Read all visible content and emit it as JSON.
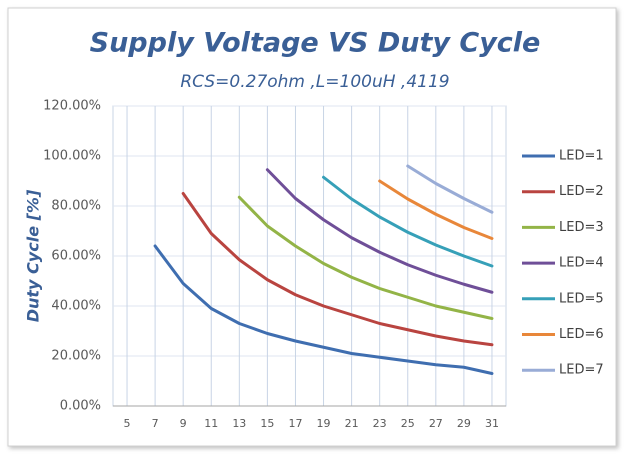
{
  "chart_data": {
    "type": "line",
    "title": "Supply Voltage VS Duty Cycle",
    "subtitle": "RCS=0.27ohm ,L=100uH ,4119",
    "y_label": "Duty Cycle [%]",
    "xlim": [
      4,
      32
    ],
    "xticks": [
      5,
      7,
      9,
      11,
      13,
      15,
      17,
      19,
      21,
      23,
      25,
      27,
      29,
      31
    ],
    "ylim": [
      0,
      120
    ],
    "yticks": [
      {
        "value": 0,
        "label": "0.00%"
      },
      {
        "value": 20,
        "label": "20.00%"
      },
      {
        "value": 40,
        "label": "40.00%"
      },
      {
        "value": 60,
        "label": "60.00%"
      },
      {
        "value": 80,
        "label": "80.00%"
      },
      {
        "value": 100,
        "label": "100.00%"
      },
      {
        "value": 120,
        "label": "120.00%"
      }
    ],
    "grid": true,
    "legend": "right",
    "series": [
      {
        "name": "LED=1",
        "color": "#3f6eb0",
        "x": [
          7,
          9,
          11,
          13,
          15,
          17,
          19,
          21,
          23,
          25,
          27,
          29,
          31
        ],
        "values": [
          64,
          49,
          39,
          33,
          29,
          26,
          23.5,
          21,
          19.5,
          18,
          16.5,
          15.5,
          13
        ]
      },
      {
        "name": "LED=2",
        "color": "#b94440",
        "x": [
          9,
          11,
          13,
          15,
          17,
          19,
          21,
          23,
          25,
          27,
          29,
          31
        ],
        "values": [
          85,
          69,
          58.5,
          50.5,
          44.5,
          40,
          36.5,
          33,
          30.5,
          28,
          26,
          24.5
        ]
      },
      {
        "name": "LED=3",
        "color": "#93b447",
        "x": [
          13,
          15,
          17,
          19,
          21,
          23,
          25,
          27,
          29,
          31
        ],
        "values": [
          83.5,
          72,
          64,
          57,
          51.5,
          47,
          43.5,
          40,
          37.5,
          35
        ]
      },
      {
        "name": "LED=4",
        "color": "#6f4f98",
        "x": [
          15,
          17,
          19,
          21,
          23,
          25,
          27,
          29,
          31
        ],
        "values": [
          94.5,
          83,
          74.5,
          67.3,
          61.5,
          56.5,
          52.3,
          48.7,
          45.5
        ]
      },
      {
        "name": "LED=5",
        "color": "#36a0b8",
        "x": [
          19,
          21,
          23,
          25,
          27,
          29,
          31
        ],
        "values": [
          91.5,
          82.8,
          75.6,
          69.5,
          64.4,
          60,
          56
        ]
      },
      {
        "name": "LED=6",
        "color": "#e8873a",
        "x": [
          23,
          25,
          27,
          29,
          31
        ],
        "values": [
          90,
          82.8,
          76.7,
          71.4,
          67
        ]
      },
      {
        "name": "LED=7",
        "color": "#99acd6",
        "x": [
          25,
          27,
          29,
          31
        ],
        "values": [
          96,
          89,
          83,
          77.5
        ]
      }
    ]
  }
}
